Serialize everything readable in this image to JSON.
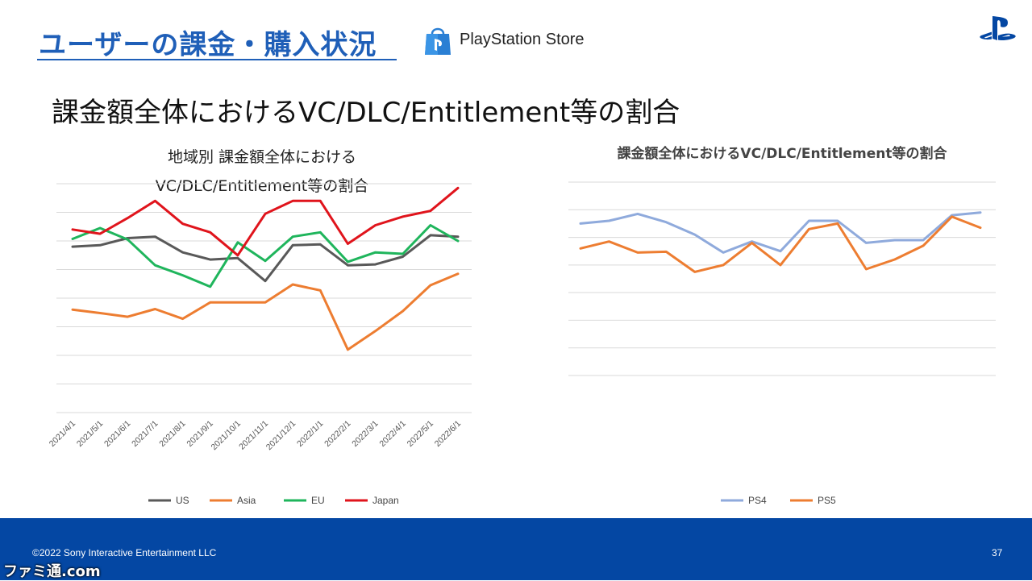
{
  "slide": {
    "title": "ユーザーの課金・購入状況",
    "store_name": "PlayStation Store",
    "subtitle": "課金額全体におけるVC/DLC/Entitlement等の割合",
    "copyright": "©2022 Sony Interactive Entertainment LLC",
    "page_number": "37",
    "watermark": "ファミ通.com",
    "colors": {
      "title": "#1f5fb8",
      "footer": "#0447a3"
    },
    "icons": [
      "playstation-store-bag-icon",
      "playstation-logo-icon"
    ]
  },
  "chart_data": [
    {
      "type": "line",
      "title_lines": [
        "地域別 課金額全体における",
        "VC/DLC/Entitlement等の割合"
      ],
      "xlabel": "",
      "ylabel": "",
      "y_tick_labels_shown": false,
      "ylim": [
        0,
        8
      ],
      "grid": true,
      "legend_position": "bottom",
      "categories": [
        "2021/4/1",
        "2021/5/1",
        "2021/6/1",
        "2021/7/1",
        "2021/8/1",
        "2021/9/1",
        "2021/10/1",
        "2021/11/1",
        "2021/12/1",
        "2022/1/1",
        "2022/2/1",
        "2022/3/1",
        "2022/4/1",
        "2022/5/1",
        "2022/6/1"
      ],
      "series": [
        {
          "name": "US",
          "color": "#595959",
          "values": [
            5.8,
            5.85,
            6.1,
            6.15,
            5.6,
            5.35,
            5.4,
            4.6,
            5.85,
            5.88,
            5.15,
            5.18,
            5.45,
            6.2,
            6.15
          ]
        },
        {
          "name": "Asia",
          "color": "#ed7d31",
          "values": [
            3.6,
            3.48,
            3.35,
            3.62,
            3.28,
            3.85,
            3.85,
            3.85,
            4.48,
            4.27,
            2.2,
            2.85,
            3.55,
            4.45,
            4.85
          ]
        },
        {
          "name": "EU",
          "color": "#1fb55c",
          "values": [
            6.07,
            6.45,
            6.05,
            5.15,
            4.8,
            4.4,
            5.95,
            5.3,
            6.15,
            6.3,
            5.27,
            5.6,
            5.55,
            6.55,
            6.0
          ]
        },
        {
          "name": "Japan",
          "color": "#e0141c",
          "values": [
            6.4,
            6.25,
            6.8,
            7.4,
            6.6,
            6.3,
            5.5,
            6.95,
            7.4,
            7.4,
            5.9,
            6.55,
            6.85,
            7.05,
            7.85
          ]
        }
      ]
    },
    {
      "type": "line",
      "title_lines": [
        "課金額全体におけるVC/DLC/Entitlement等の割合"
      ],
      "xlabel": "",
      "ylabel": "",
      "y_tick_labels_shown": false,
      "ylim": [
        0,
        7
      ],
      "grid": true,
      "legend_position": "bottom",
      "categories": [
        "2021/4/1",
        "2021/5/1",
        "2021/6/1",
        "2021/7/1",
        "2021/8/1",
        "2021/9/1",
        "2021/10/1",
        "2021/11/1",
        "2021/12/1",
        "2022/1/1",
        "2022/2/1",
        "2022/3/1",
        "2022/4/1",
        "2022/5/1",
        "2022/6/1"
      ],
      "series": [
        {
          "name": "PS4",
          "color": "#8faadc",
          "values": [
            5.5,
            5.6,
            5.85,
            5.55,
            5.1,
            4.45,
            4.85,
            4.5,
            5.6,
            5.6,
            4.8,
            4.9,
            4.9,
            5.8,
            5.9
          ]
        },
        {
          "name": "PS5",
          "color": "#ed7d31",
          "values": [
            4.6,
            4.85,
            4.45,
            4.48,
            3.75,
            4.0,
            4.8,
            4.0,
            5.3,
            5.5,
            3.85,
            4.2,
            4.7,
            5.75,
            5.35
          ]
        }
      ]
    }
  ]
}
